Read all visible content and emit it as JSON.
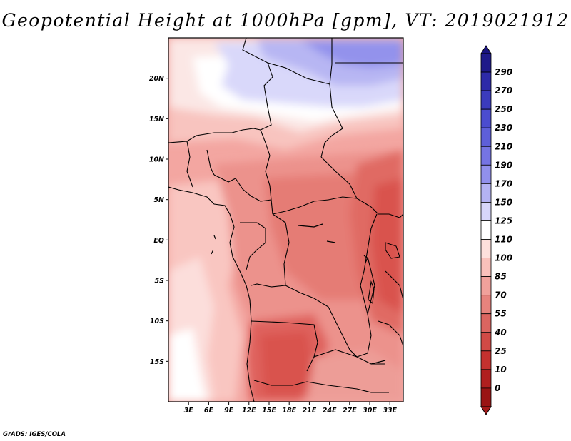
{
  "title": "Geopotential Height at 1000hPa [gpm], VT: 2019021912",
  "credit": "GrADS: IGES/COLA",
  "map": {
    "lat_range": [
      -20,
      25
    ],
    "lon_range": [
      0,
      35
    ],
    "lat_labels": [
      {
        "lat": 20,
        "text": "20N"
      },
      {
        "lat": 15,
        "text": "15N"
      },
      {
        "lat": 10,
        "text": "10N"
      },
      {
        "lat": 5,
        "text": "5N"
      },
      {
        "lat": 0,
        "text": "EQ"
      },
      {
        "lat": -5,
        "text": "5S"
      },
      {
        "lat": -10,
        "text": "10S"
      },
      {
        "lat": -15,
        "text": "15S"
      }
    ],
    "lon_labels": [
      {
        "lon": 3,
        "text": "3E"
      },
      {
        "lon": 6,
        "text": "6E"
      },
      {
        "lon": 9,
        "text": "9E"
      },
      {
        "lon": 12,
        "text": "12E"
      },
      {
        "lon": 15,
        "text": "15E"
      },
      {
        "lon": 18,
        "text": "18E"
      },
      {
        "lon": 21,
        "text": "21E"
      },
      {
        "lon": 24,
        "text": "24E"
      },
      {
        "lon": 27,
        "text": "27E"
      },
      {
        "lon": 30,
        "text": "30E"
      },
      {
        "lon": 33,
        "text": "33E"
      }
    ]
  },
  "colorbar": {
    "levels": [
      "290",
      "270",
      "250",
      "230",
      "210",
      "190",
      "170",
      "150",
      "125",
      "110",
      "100",
      "85",
      "70",
      "55",
      "40",
      "25",
      "10",
      "0"
    ],
    "colors": [
      "#1f1a8a",
      "#2d2aa8",
      "#3b3bbd",
      "#4b4ccf",
      "#5e5fd9",
      "#7574e3",
      "#9190ec",
      "#b4b3f3",
      "#d7d6fa",
      "#ffffff",
      "#fde0dc",
      "#f9c1bb",
      "#f0a19b",
      "#e6837d",
      "#db6560",
      "#d14a46",
      "#c4312f",
      "#b01f1f",
      "#9a1414"
    ],
    "tip_colors": {
      "top": "#1a1480",
      "bottom": "#a51a1a"
    }
  }
}
